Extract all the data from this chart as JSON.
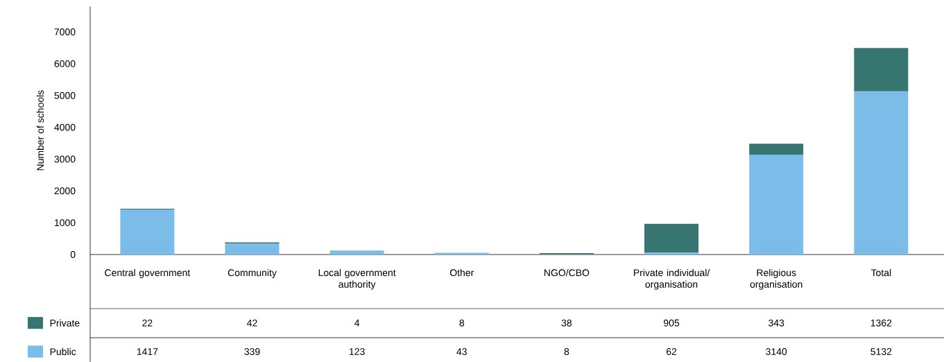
{
  "chart_data": {
    "type": "bar",
    "stacked": true,
    "ylabel": "Number of schools",
    "categories": [
      "Central government",
      "Community",
      "Local government authority",
      "Other",
      "NGO/CBO",
      "Private individual/ organisation",
      "Religious organisation",
      "Total"
    ],
    "series": [
      {
        "name": "Public",
        "color": "#7bbde8",
        "values": [
          1417,
          339,
          123,
          43,
          8,
          62,
          3140,
          5132
        ]
      },
      {
        "name": "Private",
        "color": "#367570",
        "values": [
          22,
          42,
          4,
          8,
          38,
          905,
          343,
          1362
        ]
      }
    ],
    "ylim": [
      0,
      7800
    ],
    "yticks": [
      0,
      1000,
      2000,
      3000,
      4000,
      5000,
      6000,
      7000
    ],
    "data_labels": true,
    "legend": "bottom left",
    "grid": false
  }
}
